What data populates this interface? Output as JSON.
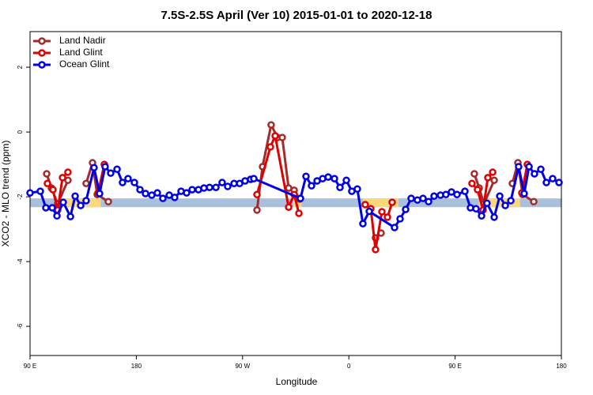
{
  "chart_data": {
    "type": "line",
    "title": "7.5S-2.5S April (Ver 10)   2015-01-01 to 2020-12-18",
    "xlabel": "Longitude",
    "ylabel": "XCO2 - MLO trend (ppm)",
    "xlim": [
      90,
      540
    ],
    "ylim": [
      -6.9,
      3.1
    ],
    "xticks": [
      {
        "value": 90,
        "label": "90 E"
      },
      {
        "value": 180,
        "label": "180"
      },
      {
        "value": 270,
        "label": "90 W"
      },
      {
        "value": 360,
        "label": "0"
      },
      {
        "value": 450,
        "label": "90 E"
      },
      {
        "value": 540,
        "label": "180"
      }
    ],
    "yticks": [
      2,
      0,
      -2,
      -4,
      -6
    ],
    "legend": "top-left",
    "bands": [
      {
        "color": "#a9c0dc",
        "x": [
          90,
          540
        ],
        "y": [
          -2.32,
          -2.05
        ]
      },
      {
        "color": "#fbd97a",
        "x": [
          112,
          150
        ],
        "y": [
          -2.32,
          -2.05
        ]
      },
      {
        "color": "#fbd97a",
        "x": [
          313,
          320
        ],
        "y": [
          -2.32,
          -2.05
        ]
      },
      {
        "color": "#fbd97a",
        "x": [
          372,
          402
        ],
        "y": [
          -2.32,
          -2.05
        ]
      },
      {
        "color": "#fbd97a",
        "x": [
          470,
          505
        ],
        "y": [
          -2.32,
          -2.05
        ]
      }
    ],
    "series": [
      {
        "name": "Land Nadir",
        "color": "#a52a2a",
        "x": [
          104.1,
          108.1,
          113.4,
          122.1,
          125,
          137.5,
          142.9,
          146.9,
          156.3,
          200,
          282.2,
          286.9,
          294.2,
          299.6,
          303.6,
          309,
          313.7,
          318.4,
          350,
          382.6,
          387.3,
          420,
          466.3,
          470.4,
          474.4,
          483.1,
          490,
          498.5,
          503.2,
          507.2,
          516.6
        ],
        "values": [
          -1.29,
          -1.73,
          -2.22,
          -1.49,
          null,
          -1.59,
          -0.95,
          -1.93,
          -2.15,
          null,
          -2.41,
          -1.07,
          0.22,
          -0.17,
          -0.17,
          -1.73,
          -1.8,
          -2.07,
          null,
          -3.27,
          -3.12,
          null,
          -1.29,
          -1.73,
          -2.22,
          -1.49,
          null,
          -1.59,
          -0.95,
          -1.93,
          -2.15
        ]
      },
      {
        "name": "Land Glint",
        "color": "#e00000",
        "x": [
          104.7,
          109.4,
          113.4,
          117.5,
          122.1,
          135,
          147.6,
          152.9,
          200,
          282.2,
          293.6,
          297.6,
          309,
          313.7,
          317.7,
          340,
          373.9,
          378.6,
          382.6,
          388,
          392.7,
          396.7,
          430,
          464.3,
          469,
          473.7,
          477.7,
          481.8,
          495,
          506.5,
          511.2
        ],
        "values": [
          -1.59,
          -1.78,
          -2.41,
          -1.41,
          -1.24,
          null,
          -1.88,
          -1.0,
          null,
          -1.93,
          -0.46,
          -0.12,
          -2.32,
          -1.93,
          -2.51,
          null,
          -2.24,
          -2.37,
          -3.63,
          -2.46,
          -2.63,
          -2.17,
          null,
          -1.59,
          -1.78,
          -2.41,
          -1.41,
          -1.24,
          null,
          -1.88,
          -1.0
        ]
      },
      {
        "name": "Ocean Glint",
        "color": "#0000e6",
        "x": [
          90,
          98.7,
          103.4,
          108.8,
          112.8,
          118.1,
          124.2,
          128.2,
          132.9,
          137.5,
          144.2,
          148.9,
          153.6,
          158.3,
          163.7,
          168.3,
          173,
          178.4,
          183.1,
          187.8,
          193.1,
          197.8,
          202.5,
          207.9,
          212.5,
          217.9,
          222.6,
          227.3,
          232.6,
          237.3,
          242,
          247.4,
          252.7,
          257.4,
          262.8,
          267.5,
          272.1,
          276.8,
          279.5,
          319,
          323.7,
          328.4,
          333.1,
          337.8,
          342.5,
          347.8,
          352.5,
          357.9,
          362.5,
          367.2,
          371.9,
          377.3,
          398.7,
          403.4,
          408.1,
          412.8,
          418.1,
          422.8,
          427.5,
          432.2,
          437.6,
          442.2,
          446.9,
          451.6,
          458.3,
          463,
          467.7,
          472.4,
          477,
          483.1,
          487.8,
          492.5,
          497.2,
          503.8,
          508.5,
          512.6,
          517.2,
          522.6,
          527.3,
          532.6,
          538
        ],
        "values": [
          -1.88,
          -1.83,
          -2.34,
          -2.34,
          -2.59,
          -2.17,
          -2.61,
          -1.98,
          -2.27,
          -2.12,
          -1.1,
          -1.9,
          -1.07,
          -1.27,
          -1.15,
          -1.56,
          -1.44,
          -1.56,
          -1.78,
          -1.9,
          -1.95,
          -1.88,
          -2.05,
          -1.95,
          -2.02,
          -1.83,
          -1.88,
          -1.78,
          -1.78,
          -1.73,
          -1.71,
          -1.71,
          -1.56,
          -1.68,
          -1.59,
          -1.59,
          -1.51,
          -1.46,
          -1.44,
          -2.05,
          -1.37,
          -1.66,
          -1.51,
          -1.44,
          -1.39,
          -1.44,
          -1.71,
          -1.49,
          -1.83,
          -1.76,
          -2.83,
          -2.45,
          -2.95,
          -2.68,
          -2.39,
          -2.05,
          -2.1,
          -2.05,
          -2.15,
          -1.98,
          -1.95,
          -1.93,
          -1.85,
          -1.93,
          -1.83,
          -2.34,
          -2.37,
          -2.59,
          -2.2,
          -2.63,
          -1.98,
          -2.27,
          -2.12,
          -1.07,
          -1.9,
          -1.07,
          -1.29,
          -1.15,
          -1.56,
          -1.44,
          -1.56
        ]
      }
    ]
  }
}
